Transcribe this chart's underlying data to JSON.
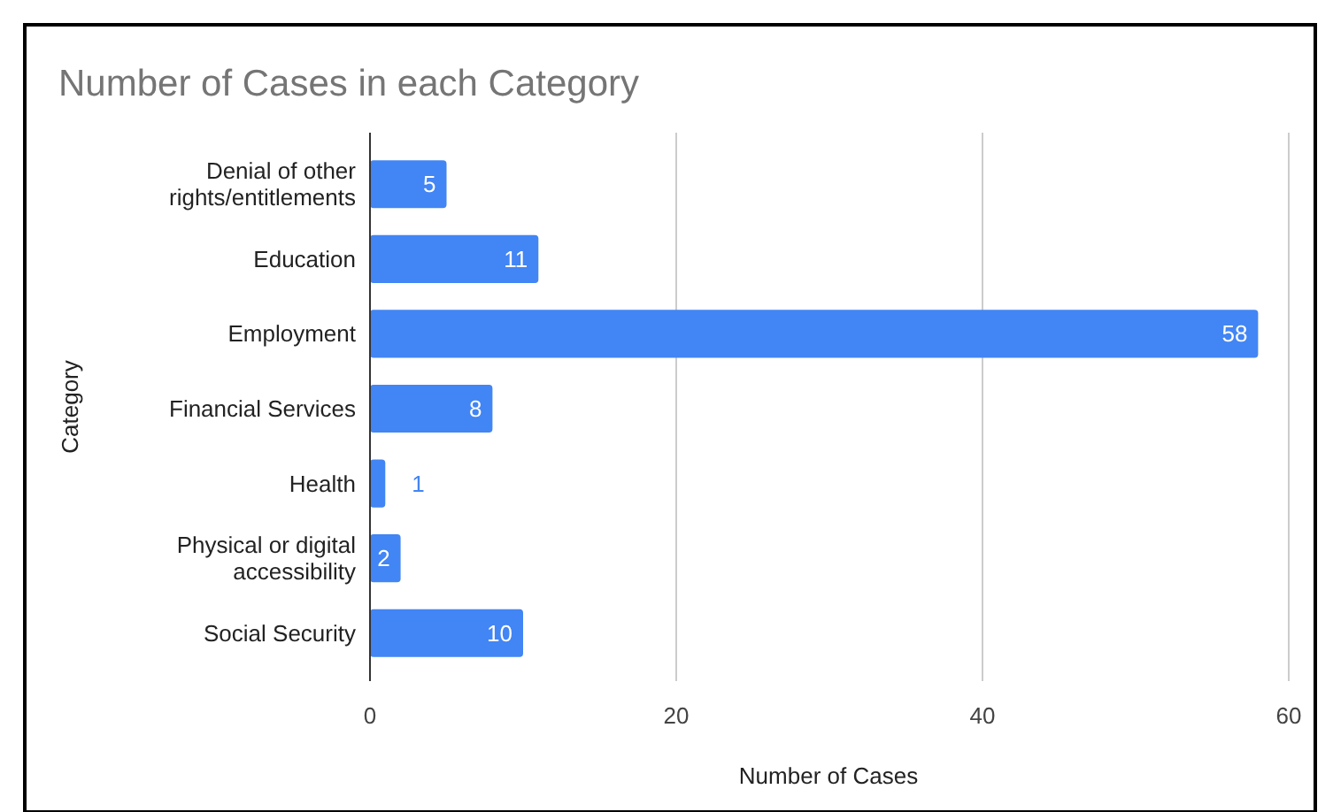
{
  "chart_data": {
    "type": "bar",
    "orientation": "horizontal",
    "title": "Number of Cases in each Category",
    "xlabel": "Number of Cases",
    "ylabel": "Category",
    "categories": [
      "Denial of other rights/entitlements",
      "Education",
      "Employment",
      "Financial Services",
      "Health",
      "Physical or digital accessibility",
      "Social Security"
    ],
    "values": [
      5,
      11,
      58,
      8,
      1,
      2,
      10
    ],
    "color": "#4285f4",
    "xlim": [
      0,
      60
    ],
    "xticks": [
      0,
      20,
      40,
      60
    ],
    "grid": "x",
    "data_labels": true
  }
}
